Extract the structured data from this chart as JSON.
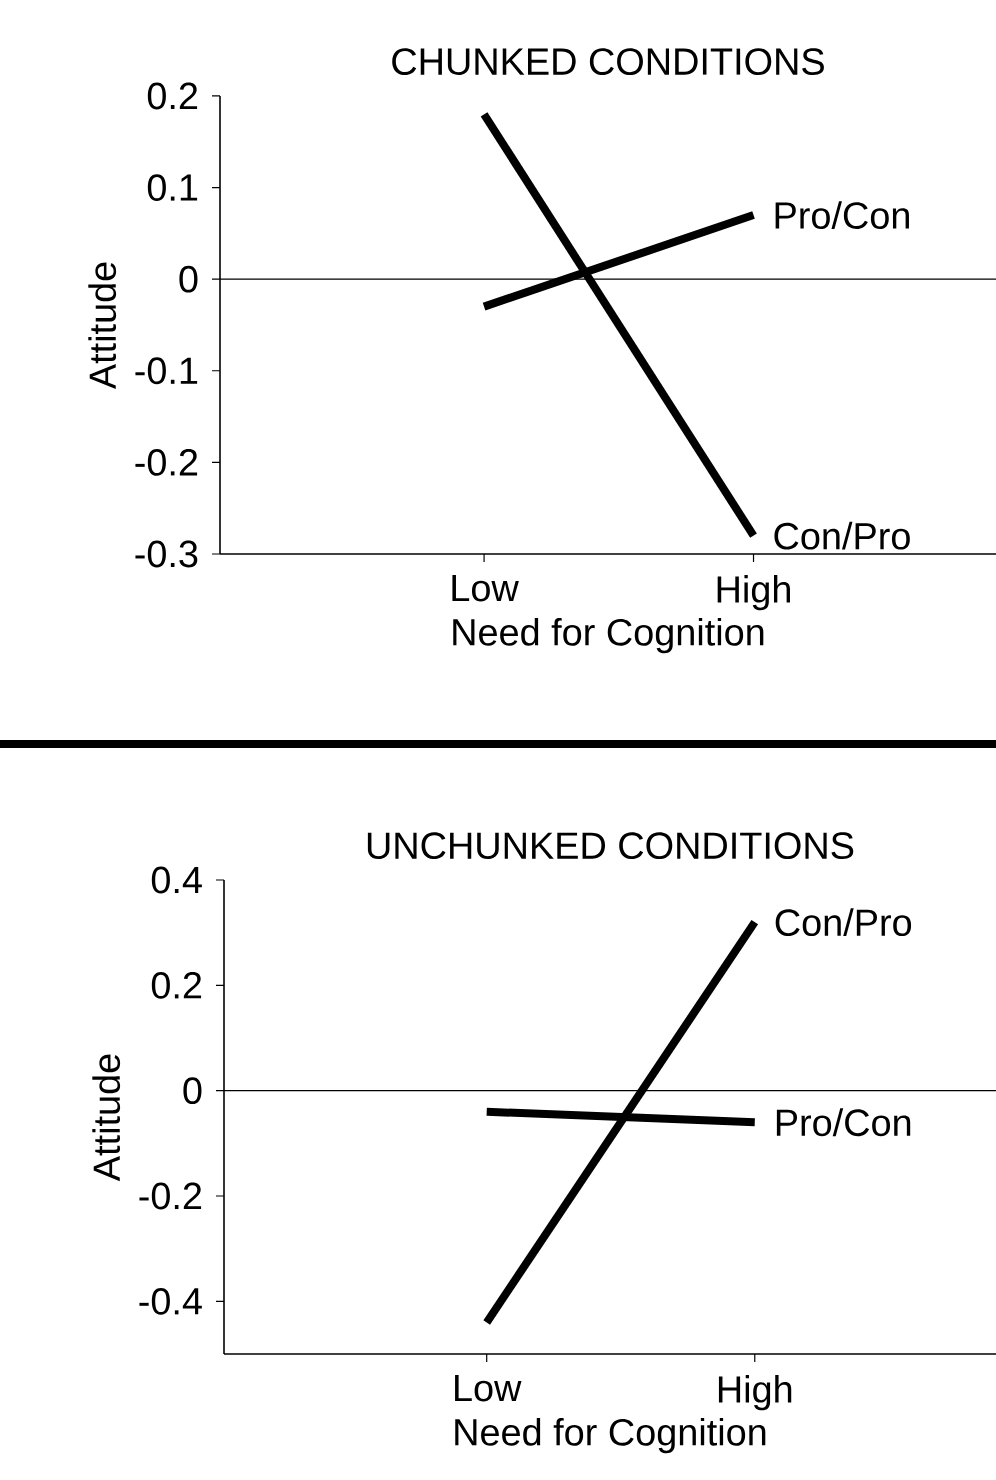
{
  "chart_data": [
    {
      "type": "line",
      "title": "CHUNKED CONDITIONS",
      "xlabel": "Need for Cognition",
      "ylabel": "Attitude",
      "categories": [
        "Low",
        "High"
      ],
      "series": [
        {
          "name": "Pro/Con",
          "color": "#000000",
          "values": [
            -0.03,
            0.07
          ]
        },
        {
          "name": "Con/Pro",
          "color": "#000000",
          "values": [
            0.18,
            -0.28
          ]
        }
      ],
      "ylim": [
        -0.3,
        0.2
      ],
      "yticks": [
        -0.3,
        -0.2,
        -0.1,
        0,
        0.1,
        0.2
      ],
      "ref_lines": [
        {
          "axis": "y",
          "value": 0
        }
      ],
      "marker": "none"
    },
    {
      "type": "line",
      "title": "UNCHUNKED CONDITIONS",
      "xlabel": "Need for Cognition",
      "ylabel": "Attitude",
      "categories": [
        "Low",
        "High"
      ],
      "series": [
        {
          "name": "Con/Pro",
          "color": "#000000",
          "values": [
            -0.44,
            0.32
          ]
        },
        {
          "name": "Pro/Con",
          "color": "#000000",
          "values": [
            -0.04,
            -0.06
          ]
        }
      ],
      "ylim": [
        -0.5,
        0.4
      ],
      "yticks": [
        -0.4,
        -0.2,
        0,
        0.2,
        0.4
      ],
      "ref_lines": [
        {
          "axis": "y",
          "value": 0
        }
      ],
      "marker": "none"
    }
  ]
}
